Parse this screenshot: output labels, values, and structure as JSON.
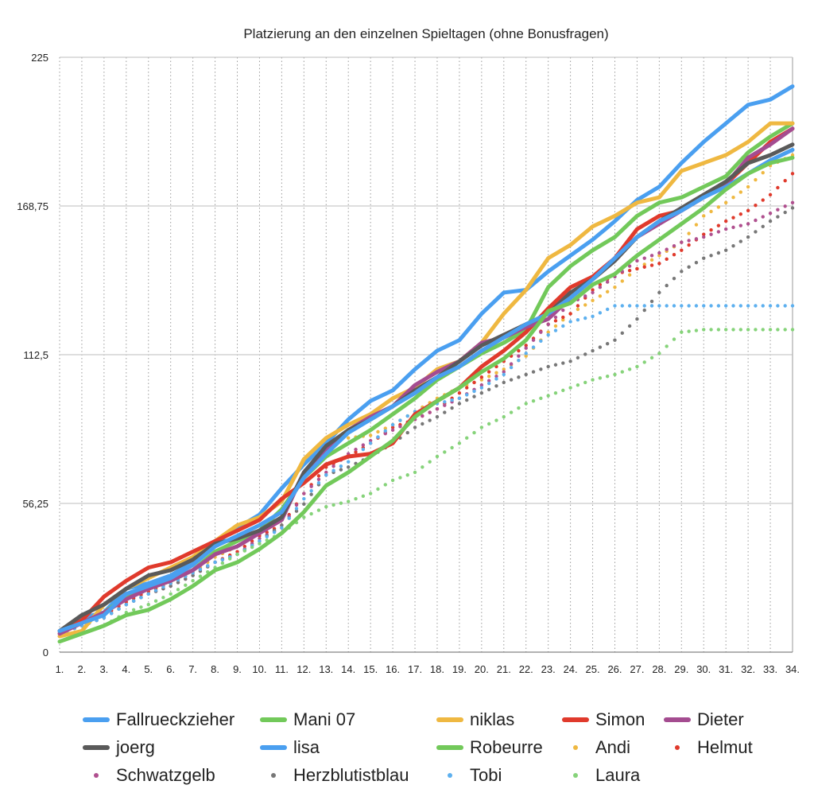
{
  "chart_data": {
    "type": "line",
    "title": "Platzierung an den einzelnen Spieltagen (ohne Bonusfragen)",
    "xlabel": "",
    "ylabel": "",
    "ylim": [
      0,
      225
    ],
    "yticks": [
      "0",
      "56,25",
      "112,5",
      "168,75",
      "225"
    ],
    "x": [
      "1.",
      "2.",
      "3.",
      "4.",
      "5.",
      "6.",
      "7.",
      "8.",
      "9.",
      "10.",
      "11.",
      "12.",
      "13.",
      "14.",
      "15.",
      "16.",
      "17.",
      "18.",
      "19.",
      "20.",
      "21.",
      "22.",
      "23.",
      "24.",
      "25.",
      "26.",
      "27.",
      "28.",
      "29.",
      "30.",
      "31.",
      "32.",
      "33.",
      "34."
    ],
    "grid": "vertical dotted, horizontal solid",
    "legend_position": "bottom",
    "series": [
      {
        "name": "Fallrueckzieher",
        "style": "line",
        "color": "#4a9ff0",
        "values": [
          8,
          13,
          15,
          24,
          26,
          29,
          34,
          41,
          47,
          52,
          62,
          71,
          79,
          88,
          95,
          99,
          107,
          114,
          118,
          128,
          136,
          137,
          144,
          150,
          156,
          163,
          171,
          176,
          185,
          193,
          200,
          207,
          209,
          214
        ]
      },
      {
        "name": "Mani 07",
        "style": "line",
        "color": "#72c95a",
        "values": [
          8,
          11,
          15,
          21,
          24,
          27,
          31,
          38,
          42,
          46,
          54,
          66,
          74,
          79,
          84,
          90,
          96,
          103,
          108,
          113,
          117,
          122,
          138,
          146,
          152,
          157,
          165,
          170,
          172,
          176,
          180,
          189,
          195,
          200
        ]
      },
      {
        "name": "niklas",
        "style": "line",
        "color": "#efb841",
        "values": [
          6,
          8,
          18,
          24,
          28,
          32,
          36,
          42,
          48,
          51,
          57,
          73,
          81,
          86,
          90,
          96,
          100,
          107,
          110,
          117,
          128,
          137,
          149,
          154,
          161,
          165,
          170,
          172,
          182,
          185,
          188,
          193,
          200,
          200
        ]
      },
      {
        "name": "Simon",
        "style": "line",
        "color": "#e03a2c",
        "values": [
          8,
          12,
          21,
          27,
          32,
          34,
          38,
          42,
          46,
          50,
          58,
          64,
          71,
          74,
          75,
          79,
          90,
          95,
          100,
          108,
          114,
          121,
          130,
          138,
          142,
          149,
          160,
          165,
          167,
          172,
          177,
          185,
          193,
          198
        ]
      },
      {
        "name": "Dieter",
        "style": "line",
        "color": "#a44c90",
        "values": [
          7,
          11,
          15,
          20,
          24,
          27,
          31,
          37,
          40,
          45,
          50,
          68,
          76,
          84,
          89,
          93,
          101,
          106,
          110,
          117,
          119,
          123,
          126,
          134,
          141,
          149,
          157,
          162,
          167,
          173,
          177,
          187,
          192,
          198
        ]
      },
      {
        "name": "joerg",
        "style": "line",
        "color": "#5a5a5a",
        "values": [
          8,
          14,
          18,
          24,
          29,
          31,
          35,
          41,
          43,
          46,
          51,
          68,
          78,
          84,
          88,
          93,
          99,
          104,
          110,
          116,
          120,
          124,
          128,
          136,
          141,
          148,
          157,
          163,
          168,
          173,
          178,
          185,
          188,
          192
        ]
      },
      {
        "name": "lisa",
        "style": "line",
        "color": "#4a9ff0",
        "values": [
          8,
          11,
          14,
          22,
          25,
          28,
          33,
          40,
          44,
          48,
          53,
          66,
          75,
          83,
          88,
          93,
          98,
          104,
          108,
          114,
          119,
          124,
          128,
          134,
          141,
          149,
          157,
          163,
          167,
          172,
          176,
          181,
          186,
          190
        ]
      },
      {
        "name": "Robeurre",
        "style": "line",
        "color": "#72c95a",
        "values": [
          4,
          7,
          10,
          14,
          16,
          20,
          25,
          31,
          34,
          39,
          45,
          53,
          63,
          68,
          74,
          80,
          89,
          95,
          100,
          106,
          111,
          118,
          129,
          132,
          139,
          143,
          150,
          156,
          162,
          168,
          175,
          181,
          185,
          187
        ]
      },
      {
        "name": "Andi",
        "style": "dots",
        "color": "#efb841",
        "values": [
          7,
          10,
          14,
          20,
          23,
          26,
          30,
          36,
          40,
          45,
          52,
          66,
          79,
          81,
          82,
          86,
          91,
          96,
          100,
          103,
          107,
          112,
          121,
          128,
          133,
          138,
          145,
          150,
          155,
          165,
          170,
          176,
          184,
          188
        ]
      },
      {
        "name": "Helmut",
        "style": "dots",
        "color": "#e03a2c",
        "values": [
          7,
          10,
          14,
          19,
          23,
          26,
          30,
          34,
          38,
          44,
          48,
          60,
          70,
          74,
          79,
          85,
          88,
          92,
          98,
          104,
          110,
          116,
          124,
          128,
          137,
          143,
          145,
          147,
          152,
          158,
          163,
          167,
          173,
          181
        ]
      },
      {
        "name": "Schwatzgelb",
        "style": "dots",
        "color": "#b0508f",
        "values": [
          7,
          10,
          13,
          18,
          22,
          25,
          29,
          34,
          37,
          43,
          47,
          60,
          68,
          75,
          80,
          84,
          88,
          92,
          96,
          101,
          106,
          115,
          124,
          132,
          136,
          142,
          148,
          151,
          155,
          157,
          160,
          162,
          166,
          170
        ]
      },
      {
        "name": "Herzblutistblau",
        "style": "dots",
        "color": "#777777",
        "values": [
          7,
          10,
          13,
          18,
          22,
          25,
          29,
          34,
          37,
          42,
          48,
          56,
          67,
          70,
          74,
          79,
          85,
          89,
          94,
          98,
          102,
          105,
          108,
          110,
          114,
          118,
          126,
          136,
          144,
          149,
          152,
          157,
          163,
          168
        ]
      },
      {
        "name": "Tobi",
        "style": "dots",
        "color": "#5db0ef",
        "values": [
          7,
          10,
          13,
          18,
          22,
          26,
          30,
          34,
          37,
          42,
          47,
          58,
          67,
          72,
          79,
          86,
          91,
          94,
          96,
          100,
          105,
          113,
          120,
          125,
          127,
          131,
          131,
          131,
          131,
          131,
          131,
          131,
          131,
          131
        ]
      },
      {
        "name": "Laura",
        "style": "dots",
        "color": "#86d37a",
        "values": [
          4,
          7,
          10,
          15,
          18,
          22,
          27,
          32,
          37,
          41,
          45,
          51,
          55,
          57,
          60,
          65,
          68,
          74,
          79,
          85,
          89,
          94,
          97,
          100,
          103,
          105,
          108,
          113,
          121,
          122,
          122,
          122,
          122,
          122
        ]
      }
    ]
  }
}
